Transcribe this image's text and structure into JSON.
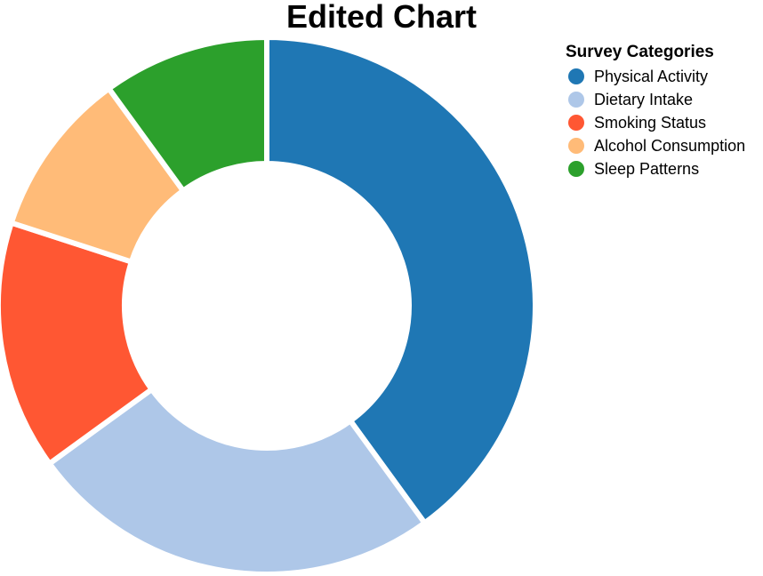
{
  "chart_data": {
    "type": "pie",
    "title": "Edited Chart",
    "legend_title": "Survey Categories",
    "legend_position": "top-right",
    "categories": [
      "Physical Activity",
      "Dietary Intake",
      "Smoking Status",
      "Alcohol Consumption",
      "Sleep Patterns"
    ],
    "values": [
      40,
      25,
      15,
      10,
      10
    ],
    "colors": [
      "#1f77b4",
      "#aec7e8",
      "#ff5733",
      "#ffbb78",
      "#2ca02c"
    ],
    "donut": true
  }
}
